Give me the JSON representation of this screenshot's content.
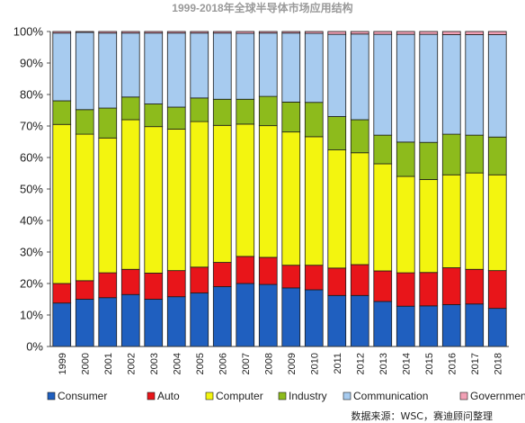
{
  "chart_data": {
    "type": "bar",
    "stacked": true,
    "title": "1999-2018年全球半导体市场应用结构",
    "ylim": [
      0,
      100
    ],
    "yticks": [
      "0%",
      "10%",
      "20%",
      "30%",
      "40%",
      "50%",
      "60%",
      "70%",
      "80%",
      "90%",
      "100%"
    ],
    "grid": false,
    "legend_position": "bottom",
    "source": "数据来源：WSC，赛迪顾问整理",
    "categories": [
      "1999",
      "2000",
      "2001",
      "2002",
      "2003",
      "2004",
      "2005",
      "2006",
      "2007",
      "2008",
      "2009",
      "2010",
      "2011",
      "2012",
      "2013",
      "2014",
      "2015",
      "2016",
      "2017",
      "2018"
    ],
    "series": [
      {
        "name": "Consumer",
        "color": "#1f5fbf",
        "values": [
          13.8,
          15.0,
          15.5,
          16.5,
          15.0,
          15.8,
          17.0,
          19.0,
          20.0,
          19.7,
          18.6,
          18.0,
          16.2,
          16.2,
          14.3,
          12.8,
          12.9,
          13.3,
          13.5,
          12.1
        ]
      },
      {
        "name": "Auto",
        "color": "#e8151a",
        "values": [
          6.2,
          5.9,
          7.9,
          8.0,
          8.3,
          8.3,
          8.2,
          7.7,
          8.6,
          8.6,
          7.2,
          7.8,
          8.7,
          9.8,
          9.7,
          10.6,
          10.6,
          11.7,
          11.0,
          12.0
        ]
      },
      {
        "name": "Computer",
        "color": "#f3f50f",
        "values": [
          50.5,
          46.5,
          42.8,
          47.5,
          46.5,
          44.9,
          46.2,
          43.5,
          42.0,
          41.8,
          42.3,
          40.8,
          37.5,
          35.5,
          34.0,
          30.6,
          29.5,
          29.5,
          30.6,
          30.4
        ]
      },
      {
        "name": "Industry",
        "color": "#8dbb1c",
        "values": [
          7.5,
          7.8,
          9.5,
          7.2,
          7.2,
          7.0,
          7.5,
          8.3,
          7.9,
          9.3,
          9.5,
          10.9,
          10.6,
          10.5,
          9.1,
          10.9,
          11.8,
          12.9,
          12.0,
          12.0
        ]
      },
      {
        "name": "Communication",
        "color": "#a7cbef",
        "values": [
          21.5,
          24.5,
          23.8,
          20.3,
          22.5,
          23.5,
          20.6,
          21.0,
          20.9,
          20.1,
          21.9,
          21.9,
          26.1,
          27.2,
          32.0,
          34.2,
          34.3,
          31.6,
          31.9,
          32.5
        ]
      },
      {
        "name": "Government",
        "color": "#f2a0b5",
        "values": [
          0.5,
          0.3,
          0.5,
          0.5,
          0.5,
          0.5,
          0.5,
          0.5,
          0.6,
          0.5,
          0.5,
          0.6,
          0.9,
          0.8,
          0.9,
          0.9,
          0.9,
          1.0,
          1.0,
          1.0
        ]
      }
    ]
  }
}
